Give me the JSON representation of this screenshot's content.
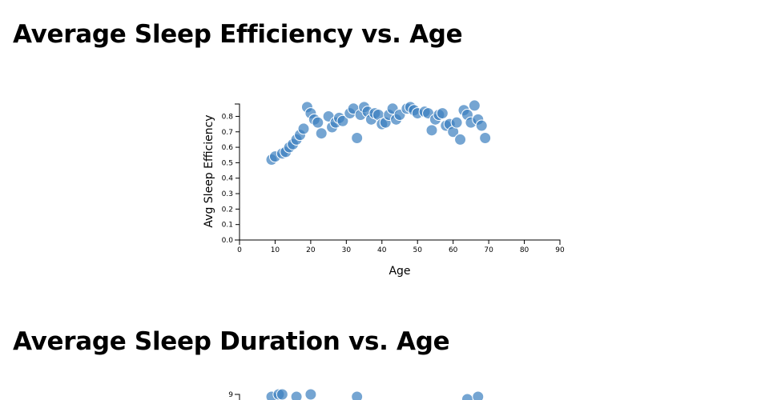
{
  "sections": [
    {
      "title": "Average Sleep Efficiency vs. Age"
    },
    {
      "title": "Average Sleep Duration vs. Age"
    }
  ],
  "colors": {
    "dot": "#3a7fbf"
  },
  "chart_data": [
    {
      "type": "scatter",
      "title": "Average Sleep Efficiency vs. Age",
      "xlabel": "Age",
      "ylabel": "Avg Sleep Efficiency",
      "xlim": [
        0,
        90
      ],
      "ylim": [
        0,
        0.88
      ],
      "xticks": [
        "0",
        "10",
        "20",
        "30",
        "40",
        "50",
        "60",
        "70",
        "80",
        "90"
      ],
      "yticks": [
        "0.0",
        "0.1",
        "0.2",
        "0.3",
        "0.4",
        "0.5",
        "0.6",
        "0.7",
        "0.8"
      ],
      "points": [
        {
          "x": 9,
          "y": 0.52
        },
        {
          "x": 10,
          "y": 0.54
        },
        {
          "x": 12,
          "y": 0.56
        },
        {
          "x": 13,
          "y": 0.57
        },
        {
          "x": 14,
          "y": 0.6
        },
        {
          "x": 15,
          "y": 0.62
        },
        {
          "x": 16,
          "y": 0.65
        },
        {
          "x": 17,
          "y": 0.68
        },
        {
          "x": 18,
          "y": 0.72
        },
        {
          "x": 19,
          "y": 0.86
        },
        {
          "x": 20,
          "y": 0.82
        },
        {
          "x": 21,
          "y": 0.78
        },
        {
          "x": 22,
          "y": 0.76
        },
        {
          "x": 23,
          "y": 0.69
        },
        {
          "x": 25,
          "y": 0.8
        },
        {
          "x": 26,
          "y": 0.73
        },
        {
          "x": 27,
          "y": 0.76
        },
        {
          "x": 28,
          "y": 0.79
        },
        {
          "x": 29,
          "y": 0.77
        },
        {
          "x": 31,
          "y": 0.82
        },
        {
          "x": 32,
          "y": 0.85
        },
        {
          "x": 33,
          "y": 0.66
        },
        {
          "x": 34,
          "y": 0.81
        },
        {
          "x": 35,
          "y": 0.86
        },
        {
          "x": 36,
          "y": 0.83
        },
        {
          "x": 37,
          "y": 0.78
        },
        {
          "x": 38,
          "y": 0.82
        },
        {
          "x": 39,
          "y": 0.81
        },
        {
          "x": 40,
          "y": 0.75
        },
        {
          "x": 41,
          "y": 0.76
        },
        {
          "x": 42,
          "y": 0.81
        },
        {
          "x": 43,
          "y": 0.85
        },
        {
          "x": 44,
          "y": 0.78
        },
        {
          "x": 45,
          "y": 0.81
        },
        {
          "x": 47,
          "y": 0.85
        },
        {
          "x": 48,
          "y": 0.86
        },
        {
          "x": 49,
          "y": 0.84
        },
        {
          "x": 50,
          "y": 0.82
        },
        {
          "x": 52,
          "y": 0.83
        },
        {
          "x": 53,
          "y": 0.82
        },
        {
          "x": 54,
          "y": 0.71
        },
        {
          "x": 55,
          "y": 0.78
        },
        {
          "x": 56,
          "y": 0.81
        },
        {
          "x": 57,
          "y": 0.82
        },
        {
          "x": 58,
          "y": 0.74
        },
        {
          "x": 59,
          "y": 0.75
        },
        {
          "x": 60,
          "y": 0.7
        },
        {
          "x": 61,
          "y": 0.76
        },
        {
          "x": 62,
          "y": 0.65
        },
        {
          "x": 63,
          "y": 0.84
        },
        {
          "x": 64,
          "y": 0.81
        },
        {
          "x": 65,
          "y": 0.76
        },
        {
          "x": 66,
          "y": 0.87
        },
        {
          "x": 67,
          "y": 0.78
        },
        {
          "x": 68,
          "y": 0.74
        },
        {
          "x": 69,
          "y": 0.66
        }
      ]
    },
    {
      "type": "scatter",
      "title": "Average Sleep Duration vs. Age",
      "xlabel": "",
      "ylabel": "",
      "visible_yticks": [
        "9"
      ],
      "points": [
        {
          "x": 9,
          "y": 8.9
        },
        {
          "x": 11,
          "y": 9.0
        },
        {
          "x": 12,
          "y": 9.0
        },
        {
          "x": 16,
          "y": 8.9
        },
        {
          "x": 20,
          "y": 9.0
        },
        {
          "x": 33,
          "y": 8.9
        },
        {
          "x": 64,
          "y": 8.8
        },
        {
          "x": 67,
          "y": 8.9
        }
      ]
    }
  ]
}
